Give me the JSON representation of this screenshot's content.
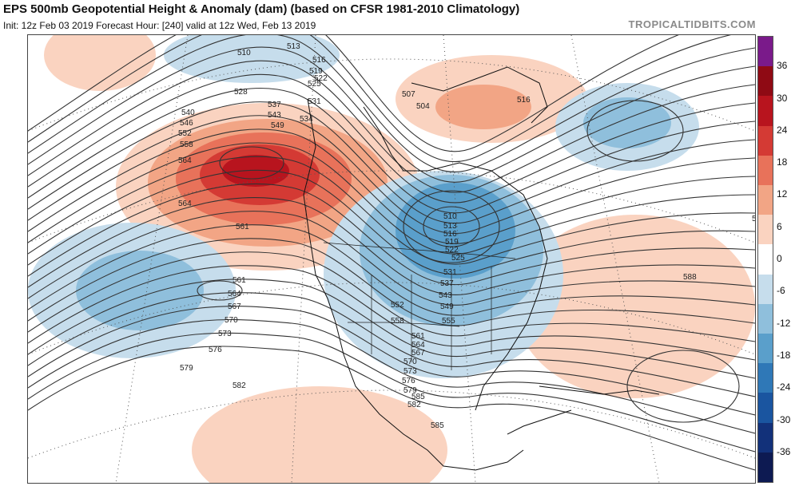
{
  "header": {
    "title": "EPS 500mb Geopotential Height & Anomaly (dam) (based on CFSR 1981-2010 Climatology)",
    "subtitle": "Init: 12z Feb 03 2019   Forecast Hour: [240]   valid at 12z Wed, Feb 13 2019",
    "credit": "TROPICALTIDBITS.COM"
  },
  "colorbar": {
    "labels": [
      "36",
      "30",
      "24",
      "18",
      "12",
      "6",
      "0",
      "-6",
      "-12",
      "-18",
      "-24",
      "-30",
      "-36"
    ],
    "colors": [
      "#7a1a8a",
      "#8f0a14",
      "#b8141e",
      "#d43a34",
      "#e8725a",
      "#f2a585",
      "#fad3c0",
      "#ffffff",
      "#c6ddec",
      "#8fbfdc",
      "#5a9fcb",
      "#2f78b7",
      "#1a55a0",
      "#12317a",
      "#0d1a52"
    ]
  },
  "map": {
    "contour_labels": [
      "510",
      "513",
      "516",
      "519",
      "522",
      "525",
      "528",
      "531",
      "537",
      "543",
      "549",
      "540",
      "546",
      "552",
      "558",
      "564",
      "564",
      "561",
      "561",
      "564",
      "567",
      "570",
      "573",
      "576",
      "579",
      "582",
      "585",
      "507",
      "504",
      "510",
      "513",
      "516",
      "519",
      "522",
      "525",
      "531",
      "537",
      "543",
      "549",
      "552",
      "555",
      "558",
      "561",
      "564",
      "567",
      "570",
      "573",
      "576",
      "579",
      "582",
      "585",
      "585",
      "588",
      "516",
      "534"
    ]
  }
}
